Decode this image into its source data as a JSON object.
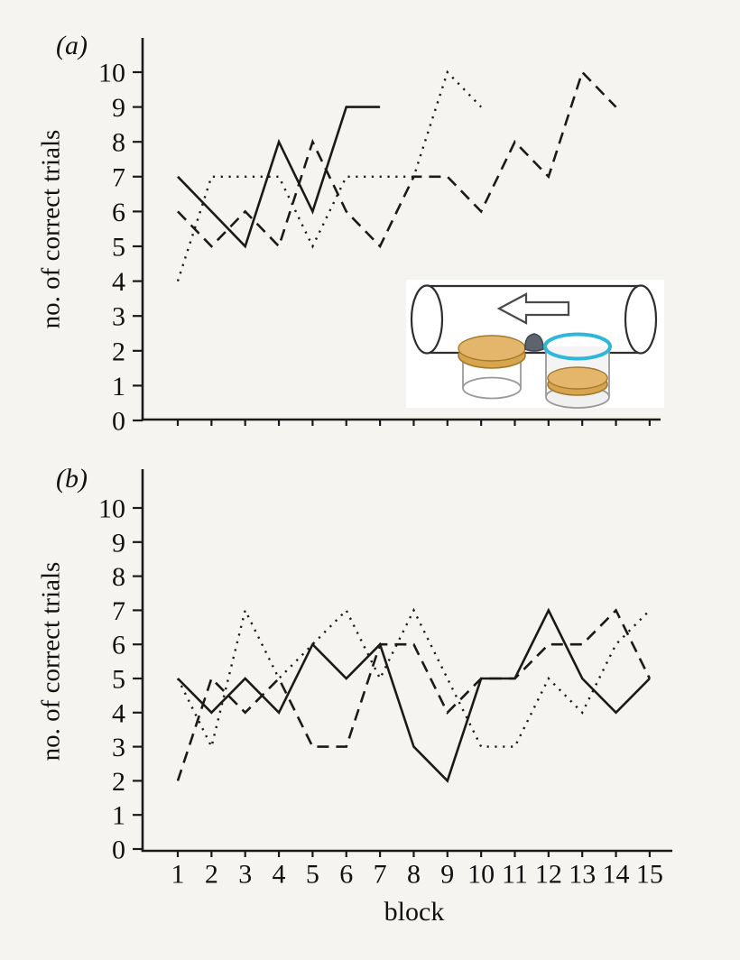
{
  "figure": {
    "description": "Two stacked line charts of number of correct trials per block for three individuals (solid, dashed, dotted lines), with an inset drawing of the tube apparatus in panel a."
  },
  "theme": {
    "page_bg": "#f5f4f1",
    "line_color": "#1a1a1a",
    "text_color": "#111111"
  },
  "panels": {
    "a": {
      "label": "(a)"
    },
    "b": {
      "label": "(b)"
    }
  },
  "axes": {
    "y_label": "no. of correct trials",
    "x_label": "block",
    "y_ticks": [
      0,
      1,
      2,
      3,
      4,
      5,
      6,
      7,
      8,
      9,
      10
    ],
    "x_ticks": [
      1,
      2,
      3,
      4,
      5,
      6,
      7,
      8,
      9,
      10,
      11,
      12,
      13,
      14,
      15
    ],
    "ylim": [
      0,
      10
    ],
    "xlim": [
      1,
      15
    ]
  },
  "chart_data": [
    {
      "panel": "a",
      "type": "line",
      "title": "",
      "xlabel": "block",
      "ylabel": "no. of correct trials",
      "ylim": [
        0,
        10
      ],
      "x_start_block": 1,
      "series": [
        {
          "name": "dotted-subject",
          "style": "dotted",
          "color": "#1a1a1a",
          "values": [
            4,
            7,
            7,
            7,
            5,
            7,
            7,
            7,
            10,
            9
          ]
        },
        {
          "name": "dashed-subject",
          "style": "dashed",
          "color": "#1a1a1a",
          "values": [
            6,
            5,
            6,
            5,
            8,
            6,
            5,
            7,
            7,
            6,
            8,
            7,
            10,
            9
          ]
        },
        {
          "name": "solid-subject",
          "style": "solid",
          "color": "#1a1a1a",
          "values": [
            7,
            6,
            5,
            8,
            6,
            9,
            9
          ]
        }
      ]
    },
    {
      "panel": "b",
      "type": "line",
      "title": "",
      "xlabel": "block",
      "ylabel": "no. of correct trials",
      "ylim": [
        0,
        10
      ],
      "x_start_block": 1,
      "series": [
        {
          "name": "dotted-subject",
          "style": "dotted",
          "color": "#1a1a1a",
          "values": [
            5,
            3,
            7,
            5,
            6,
            7,
            5,
            7,
            5,
            3,
            3,
            5,
            4,
            6,
            7
          ]
        },
        {
          "name": "dashed-subject",
          "style": "dashed",
          "color": "#1a1a1a",
          "values": [
            2,
            5,
            4,
            5,
            3,
            3,
            6,
            6,
            4,
            5,
            5,
            6,
            6,
            7,
            5
          ]
        },
        {
          "name": "solid-subject",
          "style": "solid",
          "color": "#1a1a1a",
          "values": [
            5,
            4,
            5,
            4,
            6,
            5,
            6,
            3,
            2,
            5,
            5,
            7,
            5,
            4,
            5
          ]
        }
      ]
    }
  ],
  "inset": {
    "name": "apparatus-illustration",
    "elements": [
      "tube",
      "left-arrow",
      "covered-dish-left",
      "food-pebble",
      "open-dish-right"
    ],
    "colors": {
      "panel_bg": "#ffffff",
      "outline": "#2f2f2f",
      "arrow_outline": "#4a4a4a",
      "tan": "#e4b66b",
      "tan_shadow": "#d6a54d",
      "tan_edge": "#a3792d",
      "cyan": "#2fb7da",
      "pebble": "#5d646e",
      "pebble_edge": "#40464e",
      "glass": "#9a9a9a"
    }
  }
}
